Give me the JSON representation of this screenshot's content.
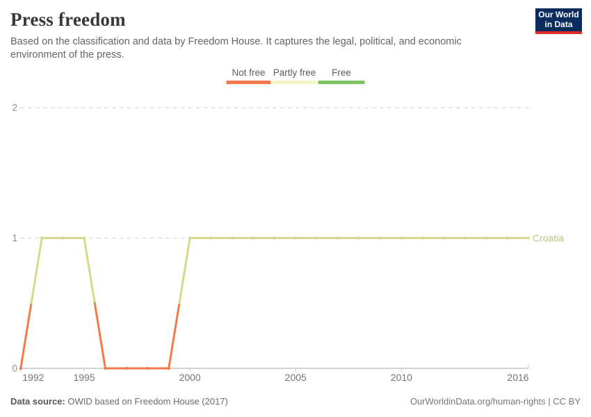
{
  "header": {
    "title": "Press freedom",
    "subtitle": "Based on the classification and data by Freedom House. It captures the legal, political, and economic environment of the press.",
    "logo": {
      "line1": "Our World",
      "line2": "in Data"
    }
  },
  "legend": {
    "items": [
      {
        "label": "Not free",
        "color": "#f3794b"
      },
      {
        "label": "Partly free",
        "color": "#f7f4c3"
      },
      {
        "label": "Free",
        "color": "#7fc462"
      }
    ]
  },
  "chart_data": {
    "type": "line",
    "title": "Press freedom",
    "entity": "Croatia",
    "x": [
      1992,
      1993,
      1994,
      1995,
      1996,
      1997,
      1998,
      1999,
      2000,
      2001,
      2002,
      2003,
      2004,
      2005,
      2006,
      2007,
      2008,
      2009,
      2010,
      2011,
      2012,
      2013,
      2014,
      2015,
      2016
    ],
    "values": [
      0,
      1,
      1,
      1,
      0,
      0,
      0,
      0,
      1,
      1,
      1,
      1,
      1,
      1,
      1,
      1,
      1,
      1,
      1,
      1,
      1,
      1,
      1,
      1,
      1
    ],
    "value_categories": {
      "0": "Not free",
      "1": "Partly free",
      "2": "Free"
    },
    "segment_colors": {
      "0": "#f3794b",
      "1": "#d6d98b"
    },
    "series_label_color": "#bfc27b",
    "xticks": [
      1992,
      1995,
      2000,
      2005,
      2010,
      2016
    ],
    "yticks": [
      0,
      1,
      2
    ],
    "ylim": [
      0,
      2
    ],
    "grid": true,
    "legend_position": "top-center"
  },
  "footer": {
    "source_label": "Data source:",
    "source_text": " OWID based on Freedom House (2017)",
    "link_text": "OurWorldinData.org/human-rights | CC BY"
  }
}
